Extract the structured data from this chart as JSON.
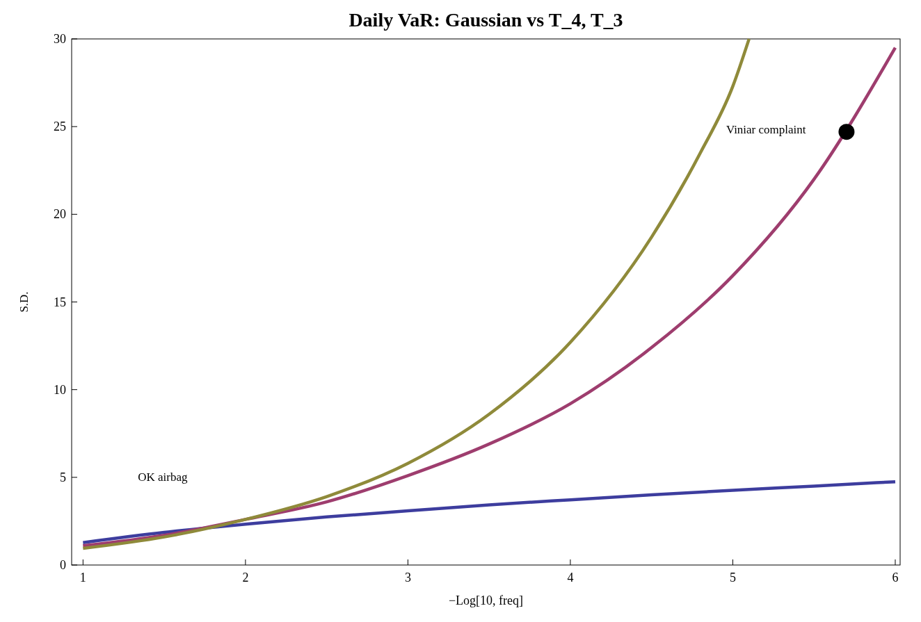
{
  "chart_data": {
    "type": "line",
    "title": "Daily VaR: Gaussian vs T_4, T_3",
    "xlabel": "−Log[10, freq]",
    "ylabel": "S.D.",
    "xlim": [
      0.93,
      6.03
    ],
    "ylim": [
      0,
      30
    ],
    "xticks": [
      1,
      2,
      3,
      4,
      5,
      6
    ],
    "yticks": [
      0,
      5,
      10,
      15,
      20,
      25,
      30
    ],
    "grid": false,
    "marker": "none",
    "line_style": "solid",
    "series": [
      {
        "color": "#3d3d9e",
        "x": [
          1,
          1.5,
          2,
          2.5,
          3,
          3.5,
          4,
          4.5,
          5,
          5.5,
          6
        ],
        "values": [
          1.28,
          1.86,
          2.33,
          2.74,
          3.09,
          3.43,
          3.72,
          4.0,
          4.26,
          4.5,
          4.75
        ]
      },
      {
        "color": "#9e3d6e",
        "x": [
          1,
          1.5,
          2,
          2.5,
          3,
          3.5,
          4,
          4.5,
          5,
          5.5,
          6
        ],
        "values": [
          1.1,
          1.7,
          2.6,
          3.6,
          5.1,
          6.9,
          9.2,
          12.4,
          16.5,
          22.0,
          29.5
        ]
      },
      {
        "color": "#8f8a3a",
        "x": [
          1,
          1.5,
          2,
          2.5,
          3,
          3.5,
          4,
          4.5,
          4.8,
          5,
          5.1
        ],
        "values": [
          0.95,
          1.6,
          2.6,
          3.9,
          5.8,
          8.6,
          12.7,
          18.7,
          23.5,
          27.3,
          30
        ]
      },
      {
        "type": "scatter",
        "color": "#000000",
        "marker": "circle",
        "x": [
          5.7
        ],
        "values": [
          24.7
        ]
      }
    ],
    "annotations": [
      "Viniar complaint",
      "OK airbag"
    ]
  }
}
